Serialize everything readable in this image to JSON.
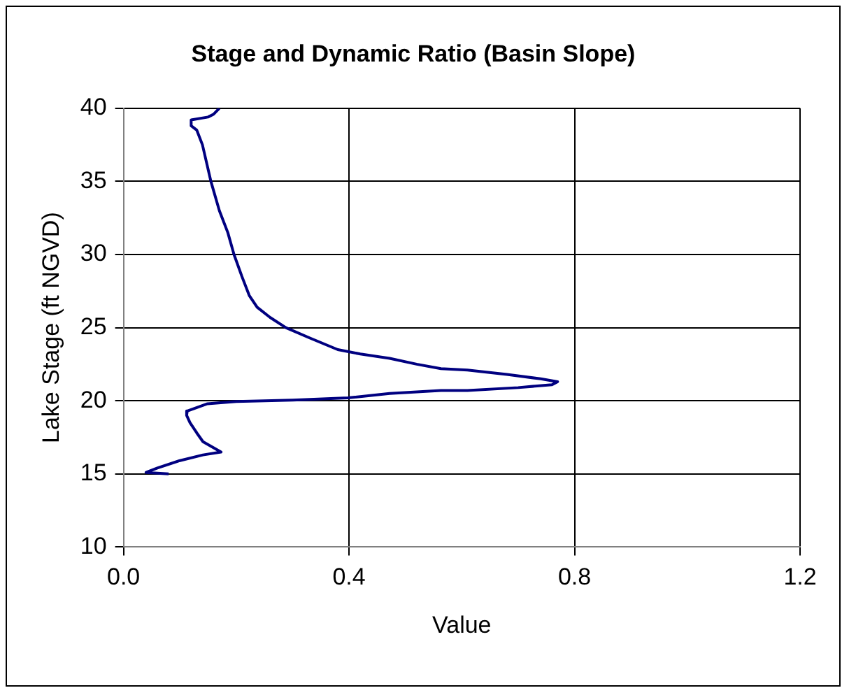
{
  "chart_data": {
    "type": "line",
    "title": "Stage and Dynamic Ratio (Basin Slope)",
    "xlabel": "Value",
    "ylabel": "Lake Stage (ft NGVD)",
    "xlim": [
      0,
      1.2
    ],
    "xticks": [
      {
        "value": 0,
        "label": "0.0"
      },
      {
        "value": 0.4,
        "label": "0.4"
      },
      {
        "value": 0.8,
        "label": "0.8"
      },
      {
        "value": 1.2,
        "label": "1.2"
      }
    ],
    "ylim": [
      10,
      40
    ],
    "yticks": [
      10,
      15,
      20,
      25,
      30,
      35,
      40
    ],
    "grid": true,
    "legend": false,
    "marker": "none",
    "line_style": "solid",
    "series": [
      {
        "color": "#000080",
        "x": [
          0.17,
          0.16,
          0.15,
          0.12,
          0.12,
          0.13,
          0.14,
          0.155,
          0.17,
          0.185,
          0.196,
          0.21,
          0.223,
          0.237,
          0.26,
          0.288,
          0.33,
          0.38,
          0.42,
          0.472,
          0.52,
          0.563,
          0.61,
          0.68,
          0.74,
          0.77,
          0.76,
          0.7,
          0.61,
          0.563,
          0.472,
          0.398,
          0.3,
          0.2,
          0.149,
          0.113,
          0.112,
          0.118,
          0.13,
          0.141,
          0.173,
          0.141,
          0.099,
          0.06,
          0.04,
          0.08
        ],
        "values": [
          40,
          39.6,
          39.4,
          39.2,
          38.8,
          38.5,
          37.5,
          35,
          33,
          31.5,
          30,
          28.5,
          27.2,
          26.4,
          25.7,
          25,
          24.3,
          23.5,
          23.2,
          22.9,
          22.5,
          22.2,
          22.1,
          21.8,
          21.5,
          21.3,
          21.1,
          20.9,
          20.7,
          20.7,
          20.5,
          20.2,
          20.05,
          19.95,
          19.8,
          19.3,
          19,
          18.5,
          17.8,
          17.2,
          16.5,
          16.3,
          15.9,
          15.4,
          15.1,
          15
        ]
      }
    ]
  }
}
